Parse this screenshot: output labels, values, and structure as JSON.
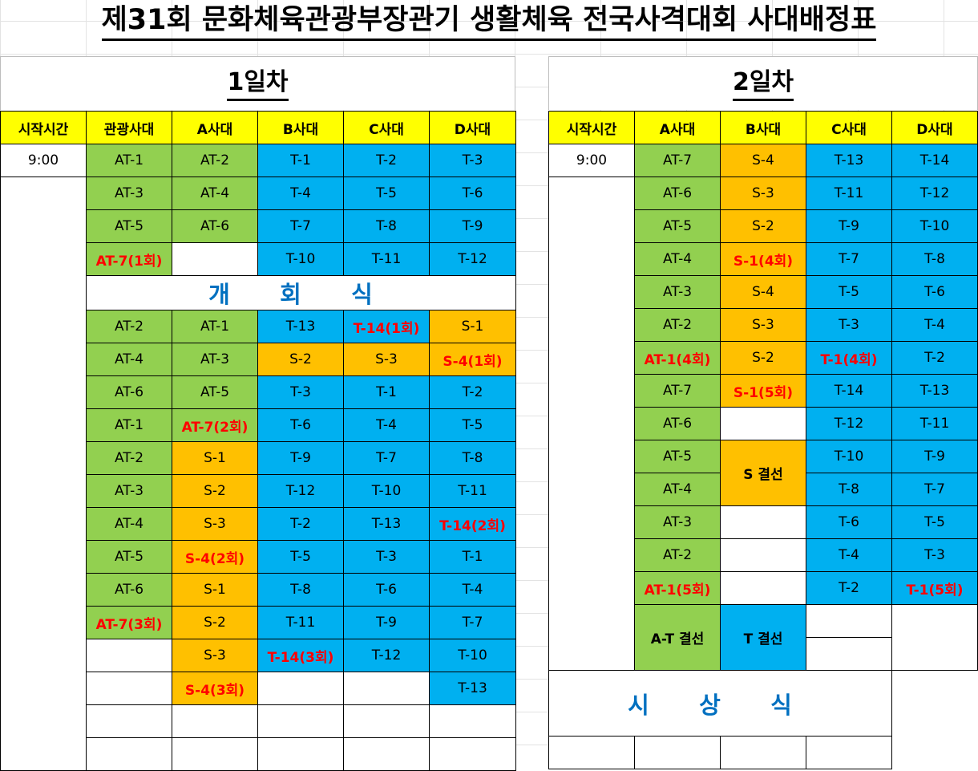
{
  "title": "제31회 문화체육관광부장관기 생활체육 전국사격대회 사대배정표",
  "colors": {
    "at": "#92d050",
    "t": "#00b0f0",
    "s": "#ffc000",
    "header": "#ffff00",
    "highlight_text": "#ff0000",
    "ceremony_text": "#0070c0"
  },
  "day1": {
    "label": "1일차",
    "headers": [
      "시작시간",
      "관광사대",
      "A사대",
      "B사대",
      "C사대",
      "D사대"
    ],
    "time": "9:00",
    "rows_before": [
      [
        "AT-1",
        "AT-2",
        "T-1",
        "T-2",
        "T-3"
      ],
      [
        "AT-3",
        "AT-4",
        "T-4",
        "T-5",
        "T-6"
      ],
      [
        "AT-5",
        "AT-6",
        "T-7",
        "T-8",
        "T-9"
      ],
      [
        "AT-7(1회)",
        "",
        "T-10",
        "T-11",
        "T-12"
      ]
    ],
    "ceremony": "개 회 식",
    "rows_after": [
      [
        "AT-2",
        "AT-1",
        "T-13",
        "T-14(1회)",
        "S-1"
      ],
      [
        "AT-4",
        "AT-3",
        "S-2",
        "S-3",
        "S-4(1회)"
      ],
      [
        "AT-6",
        "AT-5",
        "T-3",
        "T-1",
        "T-2"
      ],
      [
        "AT-1",
        "AT-7(2회)",
        "T-6",
        "T-4",
        "T-5"
      ],
      [
        "AT-2",
        "S-1",
        "T-9",
        "T-7",
        "T-8"
      ],
      [
        "AT-3",
        "S-2",
        "T-12",
        "T-10",
        "T-11"
      ],
      [
        "AT-4",
        "S-3",
        "T-2",
        "T-13",
        "T-14(2회)"
      ],
      [
        "AT-5",
        "S-4(2회)",
        "T-5",
        "T-3",
        "T-1"
      ],
      [
        "AT-6",
        "S-1",
        "T-8",
        "T-6",
        "T-4"
      ],
      [
        "AT-7(3회)",
        "S-2",
        "T-11",
        "T-9",
        "T-7"
      ],
      [
        "",
        "S-3",
        "T-14(3회)",
        "T-12",
        "T-10"
      ],
      [
        "",
        "S-4(3회)",
        "",
        "",
        "T-13"
      ],
      [
        "",
        "",
        "",
        "",
        ""
      ],
      [
        "",
        "",
        "",
        "",
        ""
      ]
    ]
  },
  "day2": {
    "label": "2일차",
    "headers": [
      "시작시간",
      "A사대",
      "B사대",
      "C사대",
      "D사대"
    ],
    "time": "9:00",
    "rows": [
      [
        "AT-7",
        "S-4",
        "T-13",
        "T-14"
      ],
      [
        "AT-6",
        "S-3",
        "T-11",
        "T-12"
      ],
      [
        "AT-5",
        "S-2",
        "T-9",
        "T-10"
      ],
      [
        "AT-4",
        "S-1(4회)",
        "T-7",
        "T-8"
      ],
      [
        "AT-3",
        "S-4",
        "T-5",
        "T-6"
      ],
      [
        "AT-2",
        "S-3",
        "T-3",
        "T-4"
      ],
      [
        "AT-1(4회)",
        "S-2",
        "T-1(4회)",
        "T-2"
      ],
      [
        "AT-7",
        "S-1(5회)",
        "T-14",
        "T-13"
      ],
      [
        "AT-6",
        "",
        "T-12",
        "T-11"
      ],
      [
        "AT-5",
        "S 결선",
        "T-10",
        "T-9"
      ],
      [
        "AT-4",
        "",
        "T-8",
        "T-7"
      ],
      [
        "AT-3",
        "",
        "T-6",
        "T-5"
      ],
      [
        "AT-2",
        "",
        "T-4",
        "T-3"
      ],
      [
        "AT-1(5회)",
        "",
        "T-2",
        "T-1(5회)"
      ]
    ],
    "final_at": "A-T 결선",
    "final_t": "T 결선",
    "ceremony": "시 상 식"
  }
}
